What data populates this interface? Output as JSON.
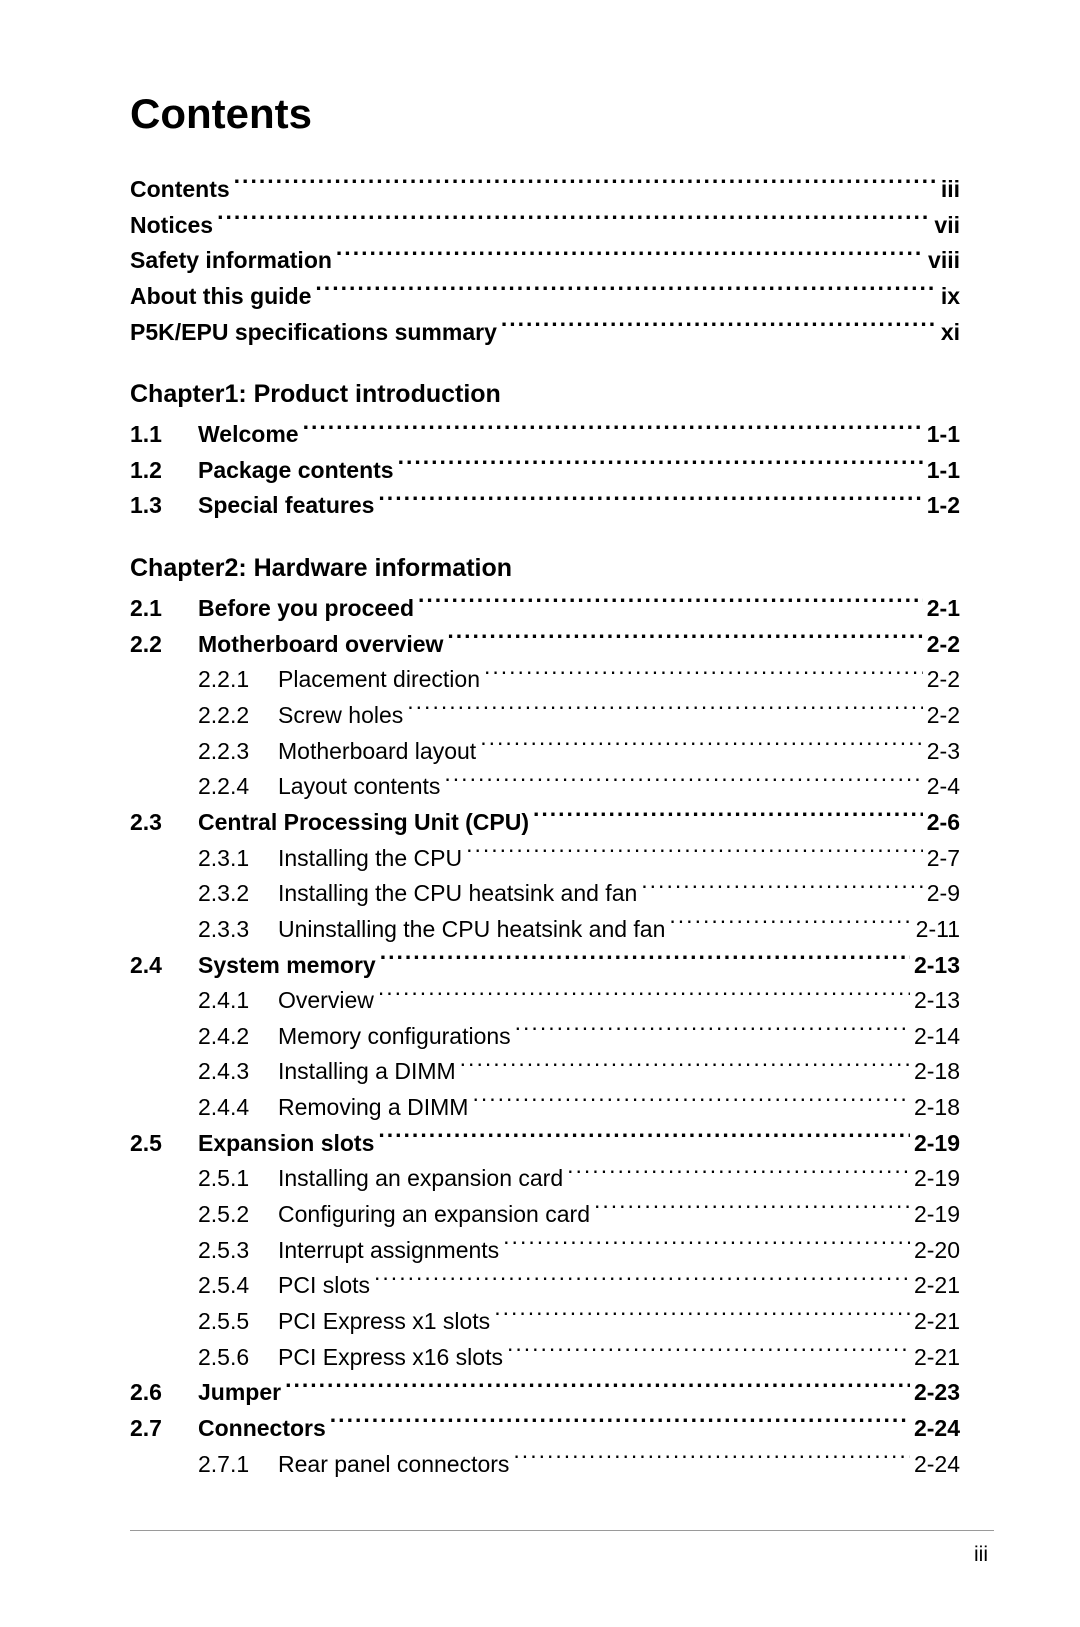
{
  "title": "Contents",
  "footer_page": "iii",
  "front_matter": [
    {
      "label": "Contents",
      "page": "iii"
    },
    {
      "label": "Notices",
      "page": "vii"
    },
    {
      "label": "Safety information",
      "page": "viii"
    },
    {
      "label": "About this guide",
      "page": "ix"
    },
    {
      "label": "P5K/EPU specifications summary",
      "page": "xi"
    }
  ],
  "chapters": [
    {
      "heading": "Chapter1: Product introduction",
      "entries": [
        {
          "level": "section",
          "num": "1.1",
          "label": "Welcome",
          "page": "1-1"
        },
        {
          "level": "section",
          "num": "1.2",
          "label": "Package contents",
          "page": "1-1"
        },
        {
          "level": "section",
          "num": "1.3",
          "label": "Special features",
          "page": "1-2"
        }
      ]
    },
    {
      "heading": "Chapter2: Hardware information",
      "entries": [
        {
          "level": "section",
          "num": "2.1",
          "label": "Before you proceed",
          "page": "2-1"
        },
        {
          "level": "section",
          "num": "2.2",
          "label": "Motherboard overview",
          "page": "2-2"
        },
        {
          "level": "sub",
          "num": "2.2.1",
          "label": "Placement direction",
          "page": "2-2"
        },
        {
          "level": "sub",
          "num": "2.2.2",
          "label": "Screw holes",
          "page": "2-2"
        },
        {
          "level": "sub",
          "num": "2.2.3",
          "label": "Motherboard layout",
          "page": "2-3"
        },
        {
          "level": "sub",
          "num": "2.2.4",
          "label": "Layout contents",
          "page": "2-4"
        },
        {
          "level": "section",
          "num": "2.3",
          "label": "Central Processing Unit (CPU)",
          "page": "2-6"
        },
        {
          "level": "sub",
          "num": "2.3.1",
          "label": "Installing the CPU",
          "page": "2-7"
        },
        {
          "level": "sub",
          "num": "2.3.2",
          "label": "Installing the CPU heatsink and fan",
          "page": "2-9"
        },
        {
          "level": "sub",
          "num": "2.3.3",
          "label": "Uninstalling the CPU heatsink and fan",
          "page": "2-11"
        },
        {
          "level": "section",
          "num": "2.4",
          "label": "System memory",
          "page": "2-13"
        },
        {
          "level": "sub",
          "num": "2.4.1",
          "label": "Overview",
          "page": "2-13"
        },
        {
          "level": "sub",
          "num": "2.4.2",
          "label": "Memory configurations",
          "page": "2-14"
        },
        {
          "level": "sub",
          "num": "2.4.3",
          "label": "Installing a DIMM",
          "page": "2-18"
        },
        {
          "level": "sub",
          "num": "2.4.4",
          "label": "Removing a DIMM",
          "page": "2-18"
        },
        {
          "level": "section",
          "num": "2.5",
          "label": "Expansion slots",
          "page": "2-19"
        },
        {
          "level": "sub",
          "num": "2.5.1",
          "label": "Installing an expansion card",
          "page": "2-19"
        },
        {
          "level": "sub",
          "num": "2.5.2",
          "label": "Configuring an expansion card",
          "page": "2-19"
        },
        {
          "level": "sub",
          "num": "2.5.3",
          "label": "Interrupt assignments",
          "page": "2-20"
        },
        {
          "level": "sub",
          "num": "2.5.4",
          "label": "PCI slots",
          "page": "2-21"
        },
        {
          "level": "sub",
          "num": "2.5.5",
          "label": "PCI Express x1 slots",
          "page": "2-21"
        },
        {
          "level": "sub",
          "num": "2.5.6",
          "label": "PCI Express x16 slots",
          "page": "2-21"
        },
        {
          "level": "section",
          "num": "2.6",
          "label": "Jumper",
          "page": "2-23"
        },
        {
          "level": "section",
          "num": "2.7",
          "label": "Connectors",
          "page": "2-24"
        },
        {
          "level": "sub",
          "num": "2.7.1",
          "label": "Rear panel connectors",
          "page": "2-24"
        }
      ]
    }
  ]
}
